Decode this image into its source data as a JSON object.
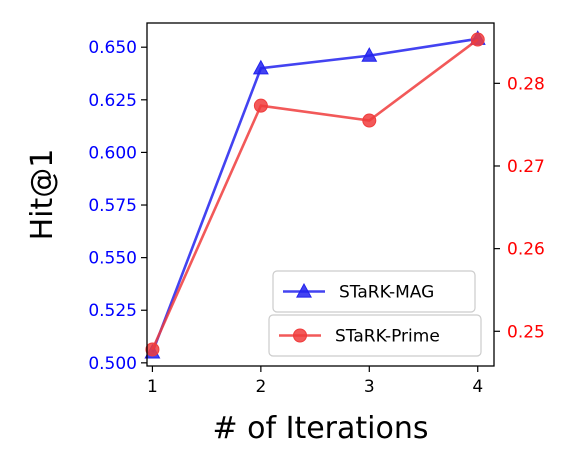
{
  "chart_data": {
    "type": "line",
    "xlabel": "# of Iterations",
    "ylabel": "Hit@1",
    "x": [
      1,
      2,
      3,
      4
    ],
    "xlim": [
      0.95,
      4.15
    ],
    "x_ticks": [
      "1",
      "2",
      "3",
      "4"
    ],
    "grid": false,
    "legend_placement": "lower-right",
    "series": [
      {
        "name": "STaRK-MAG",
        "axis": "left",
        "marker": "triangle",
        "color": "#2222ee",
        "values": [
          0.505,
          0.64,
          0.646,
          0.654
        ]
      },
      {
        "name": "STaRK-Prime",
        "axis": "right",
        "marker": "circle",
        "color": "#f03c3c",
        "values": [
          0.2478,
          0.2773,
          0.2755,
          0.2853
        ]
      }
    ],
    "left_axis": {
      "ylim": [
        0.4985,
        0.6615
      ],
      "ticks": [
        "0.500",
        "0.525",
        "0.550",
        "0.575",
        "0.600",
        "0.625",
        "0.650"
      ],
      "tick_values": [
        0.5,
        0.525,
        0.55,
        0.575,
        0.6,
        0.625,
        0.65
      ],
      "color": "#0000ff"
    },
    "right_axis": {
      "ylim": [
        0.2458,
        0.2873
      ],
      "ticks": [
        "0.25",
        "0.26",
        "0.27",
        "0.28"
      ],
      "tick_values": [
        0.25,
        0.26,
        0.27,
        0.28
      ],
      "color": "#ff0000"
    }
  }
}
